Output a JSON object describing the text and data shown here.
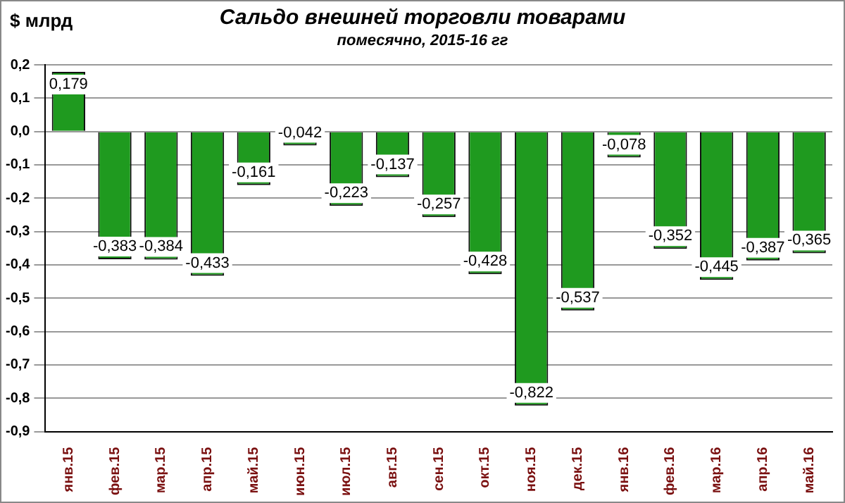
{
  "chart_data": {
    "type": "bar",
    "title": "Сальдо внешней торговли товарами",
    "subtitle": "помесячно, 2015-16 гг",
    "ylabel": "$ млрд",
    "categories": [
      "янв.15",
      "фев.15",
      "мар.15",
      "апр.15",
      "май.15",
      "июн.15",
      "июл.15",
      "авг.15",
      "сен.15",
      "окт.15",
      "ноя.15",
      "дек.15",
      "янв.16",
      "фев.16",
      "мар.16",
      "апр.16",
      "май.16"
    ],
    "values": [
      0.179,
      -0.383,
      -0.384,
      -0.433,
      -0.161,
      -0.042,
      -0.223,
      -0.137,
      -0.257,
      -0.428,
      -0.822,
      -0.537,
      -0.078,
      -0.352,
      -0.445,
      -0.387,
      -0.365
    ],
    "value_labels": [
      "0,179",
      "-0,383",
      "-0,384",
      "-0,433",
      "-0,161",
      "-0,042",
      "-0,223",
      "-0,137",
      "-0,257",
      "-0,428",
      "-0,822",
      "-0,537",
      "-0,078",
      "-0,352",
      "-0,445",
      "-0,387",
      "-0,365"
    ],
    "color": "#1f9a1f",
    "ylim": [
      -0.9,
      0.2
    ],
    "yticks": [
      {
        "value": 0.2,
        "label": "0,2"
      },
      {
        "value": 0.1,
        "label": "0,1"
      },
      {
        "value": 0,
        "label": "0,0"
      },
      {
        "value": -0.1,
        "label": "-0,1"
      },
      {
        "value": -0.2,
        "label": "-0,2"
      },
      {
        "value": -0.3,
        "label": "-0,3"
      },
      {
        "value": -0.4,
        "label": "-0,4"
      },
      {
        "value": -0.5,
        "label": "-0,5"
      },
      {
        "value": -0.6,
        "label": "-0,6"
      },
      {
        "value": -0.7,
        "label": "-0,7"
      },
      {
        "value": -0.8,
        "label": "-0,8"
      },
      {
        "value": -0.9,
        "label": "-0,9"
      }
    ],
    "grid": "y"
  }
}
